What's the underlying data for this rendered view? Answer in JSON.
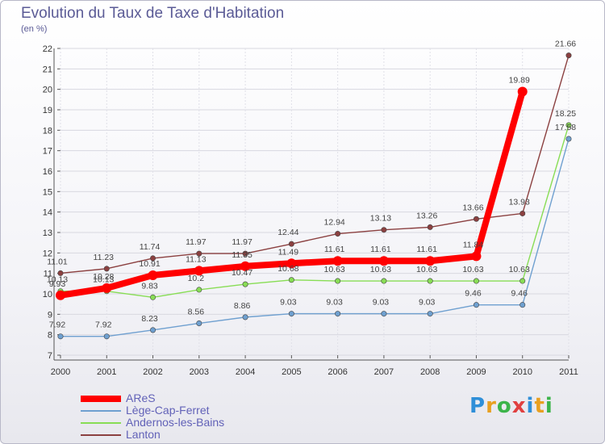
{
  "chart_data": {
    "type": "line",
    "title": "Evolution du Taux de Taxe d'Habitation",
    "subtitle": "(en %)",
    "xlabel": "",
    "ylabel": "",
    "categories": [
      "2000",
      "2001",
      "2002",
      "2003",
      "2004",
      "2005",
      "2006",
      "2007",
      "2008",
      "2009",
      "2010",
      "2011"
    ],
    "ylim": [
      7,
      22
    ],
    "yticks": [
      "7",
      "8",
      "9",
      "10",
      "11",
      "12",
      "13",
      "14",
      "15",
      "16",
      "17",
      "18",
      "19",
      "20",
      "21",
      "22"
    ],
    "grid": true,
    "legend_position": "bottom-left",
    "series": [
      {
        "name": "AReS",
        "color": "#ff0000",
        "values": [
          9.93,
          10.28,
          10.91,
          11.13,
          11.35,
          11.49,
          11.61,
          11.61,
          11.61,
          11.84,
          19.89,
          null
        ],
        "labels": [
          "9.93",
          "10.28",
          "10.91",
          "11.13",
          "11.35",
          "11.49",
          "11.61",
          "11.61",
          "11.61",
          "11.84",
          "19.89",
          ""
        ]
      },
      {
        "name": "Lège-Cap-Ferret",
        "color": "#6fa0d0",
        "values": [
          7.92,
          7.92,
          8.23,
          8.56,
          8.86,
          9.03,
          9.03,
          9.03,
          9.03,
          9.46,
          9.46,
          17.58
        ],
        "labels": [
          "7.92",
          "7.92",
          "8.23",
          "8.56",
          "8.86",
          "9.03",
          "9.03",
          "9.03",
          "9.03",
          "9.46",
          "9.46",
          "17.58"
        ]
      },
      {
        "name": "Andernos-les-Bains",
        "color": "#88dd55",
        "values": [
          10.13,
          10.13,
          9.83,
          10.2,
          10.47,
          10.68,
          10.63,
          10.63,
          10.63,
          10.63,
          10.63,
          18.25
        ],
        "labels": [
          "10.13",
          "10.13",
          "9.83",
          "10.2",
          "10.47",
          "10.68",
          "10.63",
          "10.63",
          "10.63",
          "10.63",
          "10.63",
          "18.25"
        ]
      },
      {
        "name": "Lanton",
        "color": "#8b4040",
        "values": [
          11.01,
          11.23,
          11.74,
          11.97,
          11.97,
          12.44,
          12.94,
          13.13,
          13.26,
          13.66,
          13.93,
          21.66
        ],
        "labels": [
          "11.01",
          "11.23",
          "11.74",
          "11.97",
          "11.97",
          "12.44",
          "12.94",
          "13.13",
          "13.26",
          "13.66",
          "13.93",
          "21.66"
        ]
      }
    ]
  },
  "logo": {
    "text": "Proxiti",
    "colors": [
      "#2f8fd8",
      "#e8a020",
      "#3cb44a",
      "#e04040"
    ]
  }
}
